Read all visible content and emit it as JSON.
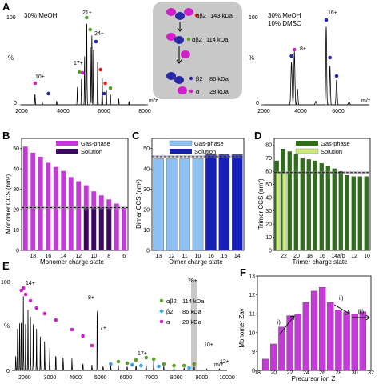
{
  "panels": {
    "A": {
      "letter": "A",
      "left_annotation": "30% MeOH",
      "right_annotation": [
        "30% MeOH",
        "10% DMSO"
      ],
      "ylabel": "%",
      "xlabel": "m/z",
      "left_xticks": [
        "2000",
        "4000",
        "6000",
        "8000"
      ],
      "left_yticks": [
        "0",
        "100"
      ],
      "right_xticks": [
        "2000",
        "4000",
        "6000"
      ],
      "right_yticks": [
        "0",
        "100"
      ],
      "left_peak_labels": [
        "10+",
        "17+",
        "21+",
        "24+"
      ],
      "right_peak_labels": [
        "8+",
        "16+"
      ],
      "schematic": [
        {
          "species": "αβ2",
          "mass": "143 kDa"
        },
        {
          "species": "αβ2",
          "mass": "114 kDa"
        },
        {
          "species": "β2",
          "mass": "86 kDa"
        },
        {
          "species": "α",
          "mass": "28 kDa"
        }
      ]
    },
    "B": {
      "letter": "B",
      "ylabel": "Monomer CCS (nm²)",
      "xlabel": "Monomer charge state",
      "legend": [
        "Gas-phase",
        "Solution"
      ],
      "xticks": [
        "18",
        "16",
        "14",
        "12",
        "10",
        "8",
        "6"
      ],
      "yticks": [
        "0",
        "10",
        "20",
        "30",
        "40",
        "50"
      ]
    },
    "C": {
      "letter": "C",
      "ylabel": "Dimer CCS (nm²)",
      "xlabel": "Dimer charge state",
      "legend": [
        "Gas-phase",
        "Solution"
      ],
      "xticks": [
        "13",
        "12",
        "11",
        "10",
        "16",
        "15",
        "14"
      ],
      "yticks": [
        "0",
        "10",
        "20",
        "30",
        "40",
        "50"
      ]
    },
    "D": {
      "letter": "D",
      "ylabel": "Trimer CCS (nm²)",
      "xlabel": "Trimer charge state",
      "legend": [
        "Gas-phase",
        "Solution"
      ],
      "xticks": [
        "22",
        "20",
        "18",
        "16",
        "14a/b",
        "12",
        "10"
      ],
      "yticks": [
        "0",
        "10",
        "20",
        "30",
        "40",
        "50",
        "60",
        "70",
        "80"
      ]
    },
    "E": {
      "letter": "E",
      "ylabel": "%",
      "xlabel": "m/z",
      "xticks": [
        "2000",
        "3000",
        "4000",
        "5000",
        "6000",
        "7000",
        "8000",
        "9000",
        "10000"
      ],
      "yticks": [
        "0",
        "100"
      ],
      "peak_labels": [
        "14+",
        "8+",
        "7+",
        "28+",
        "17+",
        "10+",
        "12+"
      ],
      "legend": [
        {
          "species": "αβ2",
          "mass": "114 kDa"
        },
        {
          "species": "β2",
          "mass": "86 kDa"
        },
        {
          "species": "α",
          "mass": "28 kDa"
        }
      ]
    },
    "F": {
      "letter": "F",
      "ylabel": "Monomer Zav",
      "xlabel": "Precursor ion Z",
      "xticks": [
        "18",
        "20",
        "22",
        "24",
        "26",
        "28",
        "30",
        "32"
      ],
      "yticks": [
        "8",
        "9",
        "10",
        "11",
        "12",
        "13"
      ],
      "annotations": [
        "i)",
        "ii)",
        "iii)"
      ]
    }
  },
  "colors": {
    "magenta": "#c43ad6",
    "dark_purple": "#3a0a5e",
    "light_blue": "#8ec1f2",
    "navy": "#1620b8",
    "dark_green": "#2f6e1a",
    "light_green": "#cde87a",
    "alpha_dot": "#d020c8",
    "beta_dot": "#2a2aa8",
    "green_dot": "#5aa02a",
    "red_dot": "#e0261c",
    "cyan_dot": "#3fa0e0",
    "schematic_bg": "#c8c8c8"
  },
  "chart_data": [
    {
      "panel": "A-left",
      "type": "line",
      "x": [
        2000,
        2650,
        2750,
        3300,
        4200,
        4800,
        5000,
        5150,
        5250,
        5400,
        5600,
        5800,
        6000,
        6500,
        7000,
        8000
      ],
      "y": [
        0,
        12,
        2,
        5,
        8,
        28,
        40,
        96,
        45,
        80,
        60,
        38,
        20,
        10,
        4,
        0
      ],
      "xlim": [
        2000,
        8000
      ],
      "ylim": [
        0,
        100
      ]
    },
    {
      "panel": "A-right",
      "type": "line",
      "x": [
        2000,
        3200,
        3400,
        3600,
        4800,
        5000,
        5200,
        5500,
        6000,
        7000
      ],
      "y": [
        0,
        48,
        62,
        20,
        5,
        90,
        42,
        28,
        3,
        0
      ],
      "xlim": [
        2000,
        7000
      ],
      "ylim": [
        0,
        100
      ]
    },
    {
      "panel": "B",
      "type": "bar",
      "categories": [
        "19",
        "18",
        "17",
        "16",
        "15",
        "14",
        "13",
        "12",
        "11",
        "10",
        "9",
        "8",
        "7",
        "6"
      ],
      "series": [
        {
          "name": "Gas-phase",
          "values": [
            51,
            48,
            46,
            43,
            41,
            39,
            36,
            34,
            32,
            29,
            27,
            25,
            23,
            21
          ]
        },
        {
          "name": "Solution",
          "values": [
            null,
            null,
            null,
            null,
            null,
            null,
            null,
            null,
            21,
            21,
            21,
            21,
            null,
            null
          ]
        }
      ],
      "reference_line": 21,
      "ylim": [
        0,
        55
      ]
    },
    {
      "panel": "C",
      "type": "bar",
      "categories": [
        "13",
        "12",
        "11",
        "10",
        "16",
        "15",
        "14"
      ],
      "series": [
        {
          "name": "Gas-phase",
          "values": [
            45,
            45,
            45,
            45,
            null,
            null,
            null
          ]
        },
        {
          "name": "Solution",
          "values": [
            null,
            null,
            null,
            null,
            47,
            47,
            47
          ]
        }
      ],
      "reference_line": 46,
      "ylim": [
        0,
        55
      ]
    },
    {
      "panel": "D",
      "type": "bar",
      "categories": [
        "23",
        "22",
        "21",
        "20",
        "19",
        "18",
        "17",
        "16",
        "15",
        "14a",
        "14b",
        "13",
        "12",
        "11",
        "10"
      ],
      "series": [
        {
          "name": "Gas-phase",
          "values": [
            68,
            77,
            75,
            73,
            70,
            69,
            68,
            66,
            64,
            62,
            60,
            57,
            56,
            56,
            56
          ]
        },
        {
          "name": "Solution",
          "values": [
            59,
            59,
            null,
            null,
            null,
            null,
            null,
            null,
            null,
            null,
            null,
            null,
            null,
            null,
            null
          ]
        }
      ],
      "reference_line": 59,
      "ylim": [
        0,
        85
      ]
    },
    {
      "panel": "E",
      "type": "line",
      "x": [
        1600,
        1800,
        1900,
        2050,
        2200,
        2400,
        2650,
        3000,
        3400,
        4200,
        4650,
        4850,
        5000,
        5400,
        5800,
        6300,
        6800,
        7100,
        7500,
        8200,
        8900,
        9500,
        10000
      ],
      "y": [
        5,
        55,
        78,
        82,
        70,
        58,
        45,
        35,
        25,
        12,
        8,
        100,
        8,
        6,
        5,
        6,
        8,
        10,
        5,
        3,
        3,
        2,
        0
      ],
      "xlim": [
        1500,
        10000
      ],
      "ylim": [
        0,
        100
      ]
    },
    {
      "panel": "F",
      "type": "bar",
      "categories": [
        19,
        20,
        21,
        22,
        23,
        24,
        25,
        26,
        27,
        28,
        29,
        30,
        31
      ],
      "values": [
        8.6,
        9.4,
        10.3,
        10.9,
        11.0,
        11.6,
        12.2,
        12.4,
        11.6,
        11.2,
        11.1,
        11.0,
        11.1
      ],
      "ylim": [
        8,
        13
      ]
    }
  ]
}
